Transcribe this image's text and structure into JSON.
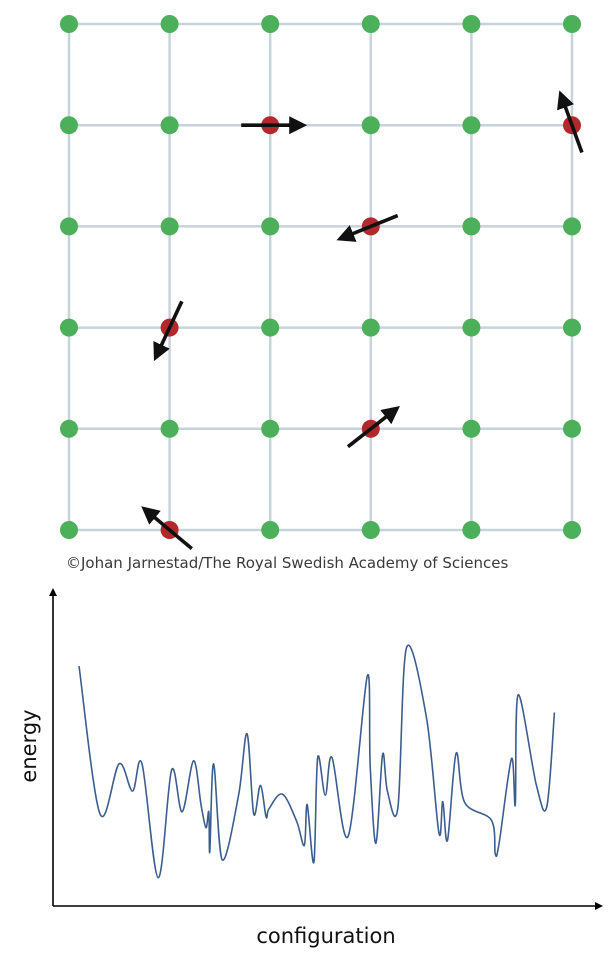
{
  "lattice": {
    "rows": 6,
    "cols": 6,
    "node_color": "#4caf5a",
    "flipped_color": "#b3282d",
    "arrow_color": "#111111",
    "line_color": "#c6d3da",
    "flipped_spins": [
      {
        "row": 1,
        "col": 2,
        "angle_deg": 0
      },
      {
        "row": 1,
        "col": 5,
        "angle_deg": -110
      },
      {
        "row": 2,
        "col": 3,
        "angle_deg": 158
      },
      {
        "row": 3,
        "col": 1,
        "angle_deg": 115
      },
      {
        "row": 4,
        "col": 3,
        "angle_deg": -38
      },
      {
        "row": 5,
        "col": 1,
        "angle_deg": -140
      }
    ]
  },
  "credit": "©Johan Jarnestad/The Royal Swedish Academy of Sciences",
  "chart_data": {
    "type": "line",
    "title": "",
    "xlabel": "configuration",
    "ylabel": "energy",
    "grid": false,
    "xlim": [
      0,
      1
    ],
    "ylim": [
      0,
      1
    ],
    "series": [
      {
        "color": "#3c5d8f",
        "x": [
          0.0,
          0.0415,
          0.0792,
          0.1057,
          0.1245,
          0.1566,
          0.183,
          0.2038,
          0.2264,
          0.2415,
          0.2509,
          0.2566,
          0.2585,
          0.266,
          0.283,
          0.3151,
          0.3321,
          0.3453,
          0.3585,
          0.3698,
          0.3755,
          0.4019,
          0.4302,
          0.4453,
          0.4509,
          0.4642,
          0.4717,
          0.4868,
          0.5,
          0.5321,
          0.5698,
          0.5755,
          0.5868,
          0.6,
          0.6094,
          0.6302,
          0.6472,
          0.6868,
          0.7113,
          0.7189,
          0.7283,
          0.7453,
          0.7623,
          0.8151,
          0.8226,
          0.8302,
          0.8547,
          0.8623,
          0.8679,
          0.9038,
          0.9245,
          0.9396
        ],
        "y": [
          0.8,
          0.307,
          0.474,
          0.383,
          0.474,
          0.094,
          0.453,
          0.314,
          0.484,
          0.334,
          0.261,
          0.314,
          0.181,
          0.474,
          0.154,
          0.366,
          0.574,
          0.307,
          0.402,
          0.297,
          0.324,
          0.373,
          0.282,
          0.202,
          0.338,
          0.146,
          0.495,
          0.369,
          0.495,
          0.233,
          0.767,
          0.467,
          0.209,
          0.505,
          0.383,
          0.328,
          0.861,
          0.627,
          0.244,
          0.348,
          0.219,
          0.509,
          0.345,
          0.286,
          0.174,
          0.209,
          0.491,
          0.338,
          0.704,
          0.404,
          0.331,
          0.645
        ]
      }
    ]
  }
}
